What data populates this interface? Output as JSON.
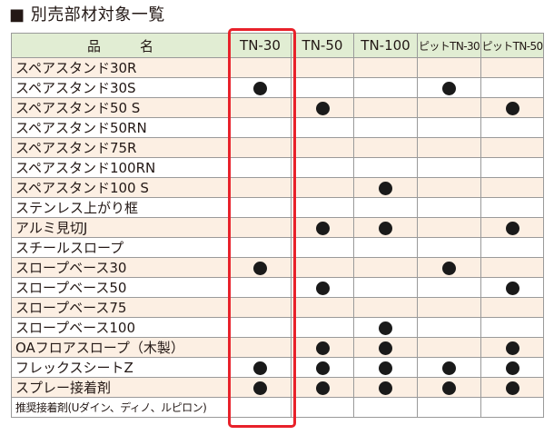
{
  "title": "■ 別売部材対象一覧",
  "columns": [
    "品　名",
    "TN-30",
    "TN-50",
    "TN-100",
    "ピットTN-30",
    "ピットTN-50"
  ],
  "highlight_column": "TN-30",
  "colors": {
    "highlight": "#e8212a",
    "header_bg": "#e1edd3",
    "stripe_bg": "#fcefe3",
    "dot": "#1a1a1a"
  },
  "mark_symbol": "dot",
  "rows": [
    {
      "name": "スペアスタンド30R",
      "marks": [
        false,
        false,
        false,
        false,
        false
      ]
    },
    {
      "name": "スペアスタンド30S",
      "marks": [
        true,
        false,
        false,
        true,
        false
      ]
    },
    {
      "name": "スペアスタンド50 S",
      "marks": [
        false,
        true,
        false,
        false,
        true
      ]
    },
    {
      "name": "スペアスタンド50RN",
      "marks": [
        false,
        false,
        false,
        false,
        false
      ]
    },
    {
      "name": "スペアスタンド75R",
      "marks": [
        false,
        false,
        false,
        false,
        false
      ]
    },
    {
      "name": "スペアスタンド100RN",
      "marks": [
        false,
        false,
        false,
        false,
        false
      ]
    },
    {
      "name": "スペアスタンド100 S",
      "marks": [
        false,
        false,
        true,
        false,
        false
      ]
    },
    {
      "name": "ステンレス上がり框",
      "marks": [
        false,
        false,
        false,
        false,
        false
      ]
    },
    {
      "name": "アルミ見切J",
      "marks": [
        false,
        true,
        true,
        false,
        true
      ]
    },
    {
      "name": "スチールスロープ",
      "marks": [
        false,
        false,
        false,
        false,
        false
      ]
    },
    {
      "name": "スロープベース30",
      "marks": [
        true,
        false,
        false,
        true,
        false
      ]
    },
    {
      "name": "スロープベース50",
      "marks": [
        false,
        true,
        false,
        false,
        true
      ]
    },
    {
      "name": "スロープベース75",
      "marks": [
        false,
        false,
        false,
        false,
        false
      ]
    },
    {
      "name": "スロープベース100",
      "marks": [
        false,
        false,
        true,
        false,
        false
      ]
    },
    {
      "name": "OAフロアスロープ（木製）",
      "marks": [
        false,
        true,
        true,
        false,
        true
      ]
    },
    {
      "name": "フレックスシートZ",
      "marks": [
        true,
        true,
        true,
        true,
        true
      ]
    },
    {
      "name": "スプレー接着剤",
      "marks": [
        true,
        true,
        true,
        true,
        true
      ]
    },
    {
      "name": "推奨接着剤(Uダイン、ディノ、ルピロン)",
      "marks": [
        false,
        false,
        false,
        false,
        false
      ],
      "small": true
    }
  ]
}
